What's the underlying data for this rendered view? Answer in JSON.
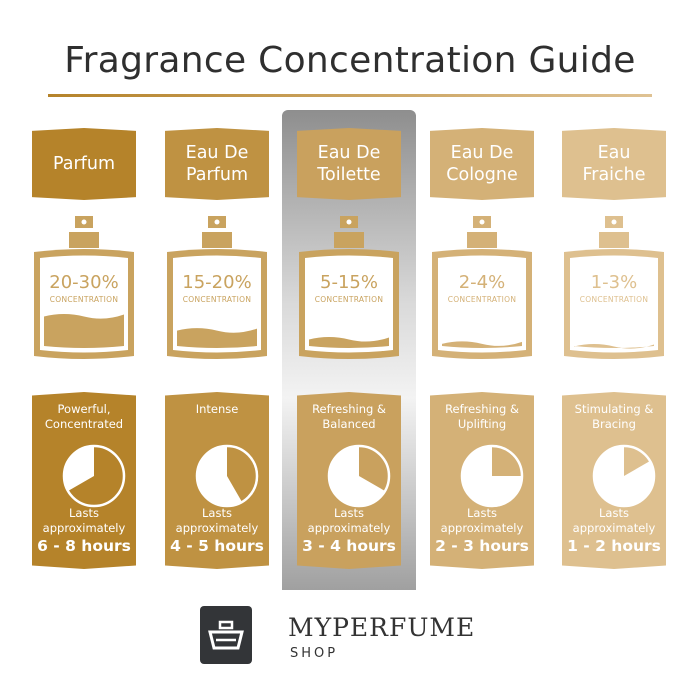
{
  "title": "Fragrance Concentration Guide",
  "concentration_suffix": "CONCENTRATION",
  "lasts_label": [
    "Lasts",
    "approximately"
  ],
  "highlighted_index": 2,
  "columns": [
    {
      "name_lines": [
        "Parfum"
      ],
      "percent": "20-30%",
      "fill_level": 0.38,
      "description": [
        "Powerful,",
        "Concentrated"
      ],
      "hours": "6 - 8 hours",
      "dial_hours": 8,
      "color": "#b5832a",
      "bottle_color": "#c9a35f"
    },
    {
      "name_lines": [
        "Eau De",
        "Parfum"
      ],
      "percent": "15-20%",
      "fill_level": 0.22,
      "description": [
        "Intense"
      ],
      "hours": "4 - 5 hours",
      "dial_hours": 5,
      "color": "#bf9242",
      "bottle_color": "#c9a35f"
    },
    {
      "name_lines": [
        "Eau De",
        "Toilette"
      ],
      "percent": "5-15%",
      "fill_level": 0.12,
      "description": [
        "Refreshing &",
        "Balanced"
      ],
      "hours": "3 - 4 hours",
      "dial_hours": 4,
      "color": "#c9a15e",
      "bottle_color": "#c9a35f"
    },
    {
      "name_lines": [
        "Eau De",
        "Cologne"
      ],
      "percent": "2-4%",
      "fill_level": 0.07,
      "description": [
        "Refreshing &",
        "Uplifting"
      ],
      "hours": "2 - 3 hours",
      "dial_hours": 3,
      "color": "#d4b177",
      "bottle_color": "#d4b177"
    },
    {
      "name_lines": [
        "Eau",
        "Fraiche"
      ],
      "percent": "1-3%",
      "fill_level": 0.04,
      "description": [
        "Stimulating &",
        "Bracing"
      ],
      "hours": "1 - 2 hours",
      "dial_hours": 2,
      "color": "#dec08f",
      "bottle_color": "#dec08f"
    }
  ],
  "brand": {
    "name": "MYPERFUME",
    "sub": "SHOP",
    "logo_color": "#333538"
  }
}
